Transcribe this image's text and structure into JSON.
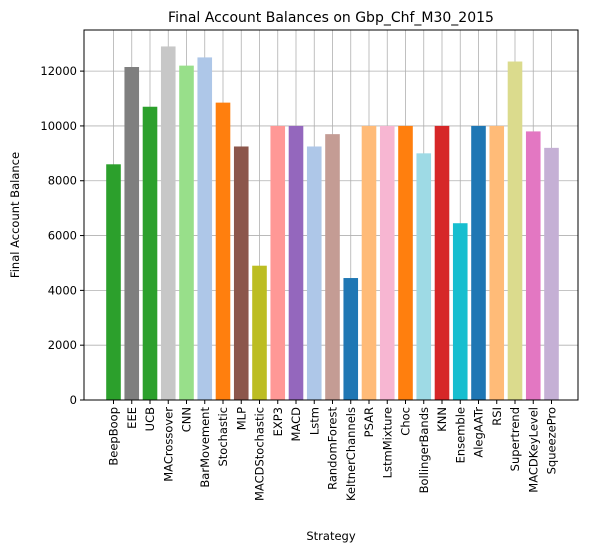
{
  "chart_data": {
    "type": "bar",
    "title": "Final Account Balances on Gbp_Chf_M30_2015",
    "xlabel": "Strategy",
    "ylabel": "Final Account Balance",
    "ylim": [
      0,
      13500
    ],
    "yticks": [
      0,
      2000,
      4000,
      6000,
      8000,
      10000,
      12000
    ],
    "grid": true,
    "categories": [
      "BeepBoop",
      "EEE",
      "UCB",
      "MACrossover",
      "CNN",
      "BarMovement",
      "Stochastic",
      "MLP",
      "MACDStochastic",
      "EXP3",
      "MACD",
      "Lstm",
      "RandomForest",
      "KeltnerChannels",
      "PSAR",
      "LstmMixture",
      "Choc",
      "BollingerBands",
      "KNN",
      "Ensemble",
      "AlegAATr",
      "RSI",
      "Supertrend",
      "MACDKeyLevel",
      "SqueezePro"
    ],
    "values": [
      8600,
      12150,
      10700,
      12900,
      12200,
      12500,
      10850,
      9250,
      4900,
      10000,
      10000,
      9250,
      9700,
      4450,
      10000,
      10000,
      10000,
      9000,
      10000,
      6450,
      10000,
      10000,
      12350,
      9800,
      9200
    ],
    "colors": [
      "#2ca02c",
      "#7f7f7f",
      "#2ca02c",
      "#c7c7c7",
      "#98df8a",
      "#aec7e8",
      "#ff7f0e",
      "#8c564b",
      "#bcbd22",
      "#ff9896",
      "#9467bd",
      "#aec7e8",
      "#c49c94",
      "#1f77b4",
      "#ffbb78",
      "#f7b6d2",
      "#ff7f0e",
      "#9edae5",
      "#d62728",
      "#17becf",
      "#1f77b4",
      "#ffbb78",
      "#dbdb8d",
      "#e377c2",
      "#c5b0d5"
    ]
  }
}
